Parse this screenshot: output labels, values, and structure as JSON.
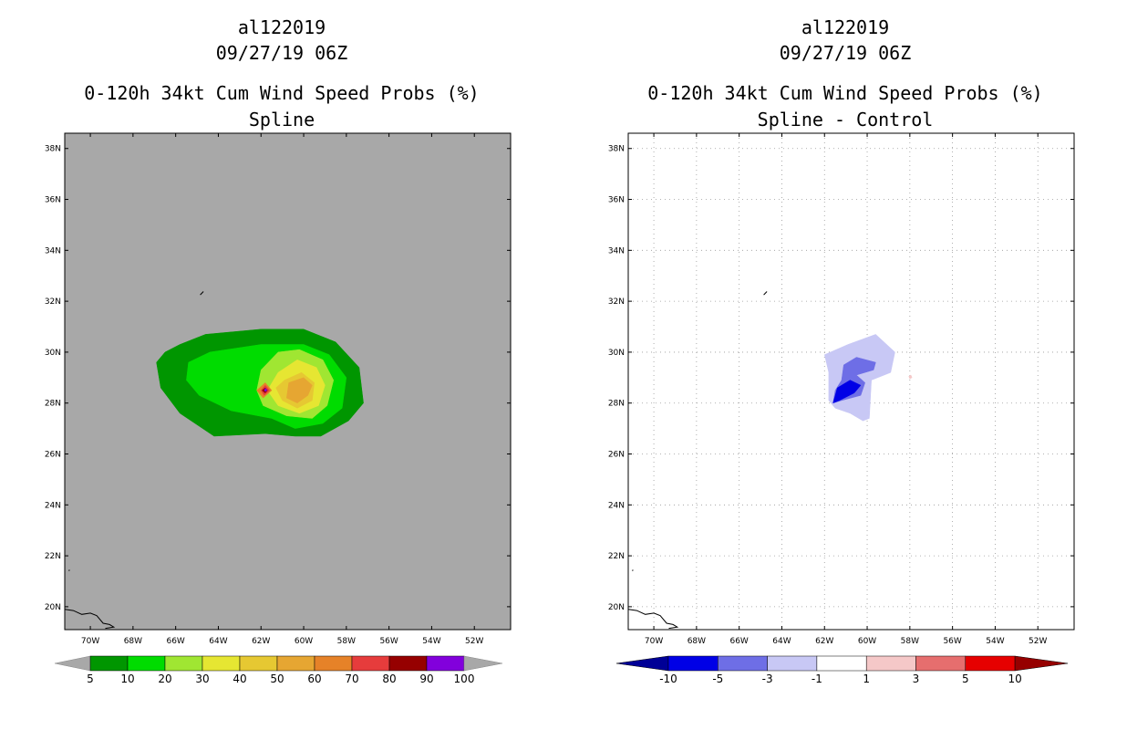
{
  "chart_data": [
    {
      "type": "heatmap",
      "storm_id": "al122019",
      "datetime": "09/27/19 06Z",
      "title": "0-120h 34kt Cum Wind Speed Probs (%)",
      "subtitle": "Spline",
      "x_ticks": [
        "70W",
        "68W",
        "66W",
        "64W",
        "62W",
        "60W",
        "58W",
        "56W",
        "54W",
        "52W"
      ],
      "y_ticks": [
        "38N",
        "36N",
        "34N",
        "32N",
        "30N",
        "28N",
        "26N",
        "24N",
        "22N",
        "20N"
      ],
      "xlim_deg_lon": [
        -71.2,
        -50.3
      ],
      "ylim_deg_lat": [
        19.1,
        38.6
      ],
      "background_color": "#a8a8a8",
      "colorbar": {
        "labels": [
          "5",
          "10",
          "20",
          "30",
          "40",
          "50",
          "60",
          "70",
          "80",
          "90",
          "100"
        ],
        "colors": [
          "#009600",
          "#00dc00",
          "#a0e632",
          "#e6e632",
          "#e6c832",
          "#e6a632",
          "#e68228",
          "#e63c3c",
          "#960000",
          "#8200dc"
        ]
      },
      "contours": [
        {
          "level": "5-10",
          "color": "#009600",
          "points": [
            [
              -65.8,
              30.3
            ],
            [
              -64.6,
              30.7
            ],
            [
              -62.0,
              30.9
            ],
            [
              -60.0,
              30.9
            ],
            [
              -58.5,
              30.4
            ],
            [
              -57.4,
              29.4
            ],
            [
              -57.2,
              28.0
            ],
            [
              -57.9,
              27.3
            ],
            [
              -59.2,
              26.7
            ],
            [
              -60.4,
              26.7
            ],
            [
              -61.8,
              26.8
            ],
            [
              -64.2,
              26.7
            ],
            [
              -65.8,
              27.6
            ],
            [
              -66.7,
              28.6
            ],
            [
              -66.9,
              29.6
            ],
            [
              -66.5,
              30.0
            ]
          ]
        },
        {
          "level": "10-20",
          "color": "#00dc00",
          "points": [
            [
              -65.4,
              29.6
            ],
            [
              -64.4,
              30.0
            ],
            [
              -62.0,
              30.3
            ],
            [
              -60.0,
              30.3
            ],
            [
              -58.8,
              29.9
            ],
            [
              -58.0,
              29.0
            ],
            [
              -58.2,
              27.8
            ],
            [
              -59.1,
              27.2
            ],
            [
              -60.4,
              27.0
            ],
            [
              -61.5,
              27.4
            ],
            [
              -63.4,
              27.7
            ],
            [
              -64.9,
              28.3
            ],
            [
              -65.5,
              28.9
            ]
          ]
        },
        {
          "level": "20-30",
          "color": "#a0e632",
          "points": [
            [
              -62.0,
              29.3
            ],
            [
              -61.2,
              30.0
            ],
            [
              -60.2,
              30.1
            ],
            [
              -59.1,
              29.7
            ],
            [
              -58.6,
              28.9
            ],
            [
              -58.9,
              27.9
            ],
            [
              -59.6,
              27.4
            ],
            [
              -60.8,
              27.5
            ],
            [
              -61.9,
              27.9
            ],
            [
              -62.2,
              28.5
            ]
          ]
        },
        {
          "level": "30-40",
          "color": "#e6e632",
          "points": [
            [
              -61.2,
              29.2
            ],
            [
              -60.3,
              29.7
            ],
            [
              -59.4,
              29.4
            ],
            [
              -59.0,
              28.7
            ],
            [
              -59.3,
              27.9
            ],
            [
              -60.2,
              27.6
            ],
            [
              -61.2,
              27.9
            ],
            [
              -61.7,
              28.5
            ]
          ]
        },
        {
          "level": "40-50",
          "color": "#e6c832",
          "points": [
            [
              -60.9,
              28.9
            ],
            [
              -60.1,
              29.2
            ],
            [
              -59.5,
              28.8
            ],
            [
              -59.6,
              28.1
            ],
            [
              -60.3,
              27.8
            ],
            [
              -61.0,
              28.1
            ],
            [
              -61.3,
              28.6
            ]
          ]
        },
        {
          "level": "50-60",
          "color": "#e6a632",
          "points": [
            [
              -60.7,
              28.8
            ],
            [
              -60.0,
              29.0
            ],
            [
              -59.6,
              28.7
            ],
            [
              -59.8,
              28.3
            ],
            [
              -60.3,
              28.0
            ],
            [
              -60.8,
              28.2
            ]
          ]
        },
        {
          "level": "60-70",
          "color": "#e68228",
          "points": [
            [
              -62.2,
              28.5
            ],
            [
              -61.8,
              28.8
            ],
            [
              -61.5,
              28.5
            ],
            [
              -61.9,
              28.2
            ]
          ]
        },
        {
          "level": "70-80",
          "color": "#e63c3c",
          "points": [
            [
              -62.0,
              28.5
            ],
            [
              -61.8,
              28.7
            ],
            [
              -61.6,
              28.5
            ],
            [
              -61.85,
              28.3
            ]
          ]
        },
        {
          "level": "80-90",
          "color": "#960000",
          "points": [
            [
              -61.95,
              28.5
            ],
            [
              -61.8,
              28.6
            ],
            [
              -61.7,
              28.5
            ],
            [
              -61.8,
              28.4
            ]
          ]
        },
        {
          "level": "90-100",
          "color": "#8200dc",
          "points": [
            [
              -61.85,
              28.52
            ],
            [
              -61.78,
              28.58
            ],
            [
              -61.72,
              28.5
            ],
            [
              -61.8,
              28.45
            ]
          ]
        }
      ]
    },
    {
      "type": "heatmap",
      "storm_id": "al122019",
      "datetime": "09/27/19 06Z",
      "title": "0-120h 34kt Cum Wind Speed Probs (%)",
      "subtitle": "Spline - Control",
      "x_ticks": [
        "70W",
        "68W",
        "66W",
        "64W",
        "62W",
        "60W",
        "58W",
        "56W",
        "54W",
        "52W"
      ],
      "y_ticks": [
        "38N",
        "36N",
        "34N",
        "32N",
        "30N",
        "28N",
        "26N",
        "24N",
        "22N",
        "20N"
      ],
      "xlim_deg_lon": [
        -71.2,
        -50.3
      ],
      "ylim_deg_lat": [
        19.1,
        38.6
      ],
      "background_color": "#ffffff",
      "grid": true,
      "colorbar": {
        "labels": [
          "-10",
          "-5",
          "-3",
          "-1",
          "1",
          "3",
          "5",
          "10"
        ],
        "colors": [
          "#000096",
          "#0000e6",
          "#6e6ee6",
          "#c8c8f5",
          "#ffffff",
          "#f5c8c8",
          "#e66e6e",
          "#e60000",
          "#960000"
        ]
      },
      "contours": [
        {
          "level": "-3 to -1",
          "color": "#c8c8f5",
          "points": [
            [
              -62.0,
              29.9
            ],
            [
              -60.9,
              30.3
            ],
            [
              -59.6,
              30.7
            ],
            [
              -58.7,
              30.0
            ],
            [
              -58.9,
              29.2
            ],
            [
              -59.8,
              28.9
            ],
            [
              -59.9,
              27.4
            ],
            [
              -60.2,
              27.3
            ],
            [
              -60.8,
              27.6
            ],
            [
              -61.5,
              27.8
            ],
            [
              -61.8,
              28.1
            ],
            [
              -61.8,
              29.2
            ]
          ]
        },
        {
          "level": "-5 to -3",
          "color": "#6e6ee6",
          "points": [
            [
              -61.1,
              29.5
            ],
            [
              -60.5,
              29.8
            ],
            [
              -59.6,
              29.6
            ],
            [
              -59.7,
              29.3
            ],
            [
              -60.5,
              29.1
            ],
            [
              -60.1,
              28.8
            ],
            [
              -60.3,
              28.3
            ],
            [
              -61.2,
              28.1
            ],
            [
              -61.6,
              28.0
            ],
            [
              -61.5,
              28.5
            ],
            [
              -61.2,
              28.9
            ]
          ]
        },
        {
          "level": "-10 to -5",
          "color": "#0000e6",
          "points": [
            [
              -61.4,
              28.6
            ],
            [
              -60.8,
              28.9
            ],
            [
              -60.3,
              28.7
            ],
            [
              -60.6,
              28.4
            ],
            [
              -61.3,
              28.1
            ],
            [
              -61.6,
              28.0
            ],
            [
              -61.5,
              28.3
            ]
          ]
        },
        {
          "level": "1 to 3",
          "color": "#f5c8c8",
          "points": [
            [
              -58.05,
              29.05
            ],
            [
              -57.95,
              29.1
            ],
            [
              -57.9,
              29.0
            ],
            [
              -58.0,
              28.95
            ]
          ]
        }
      ]
    }
  ]
}
